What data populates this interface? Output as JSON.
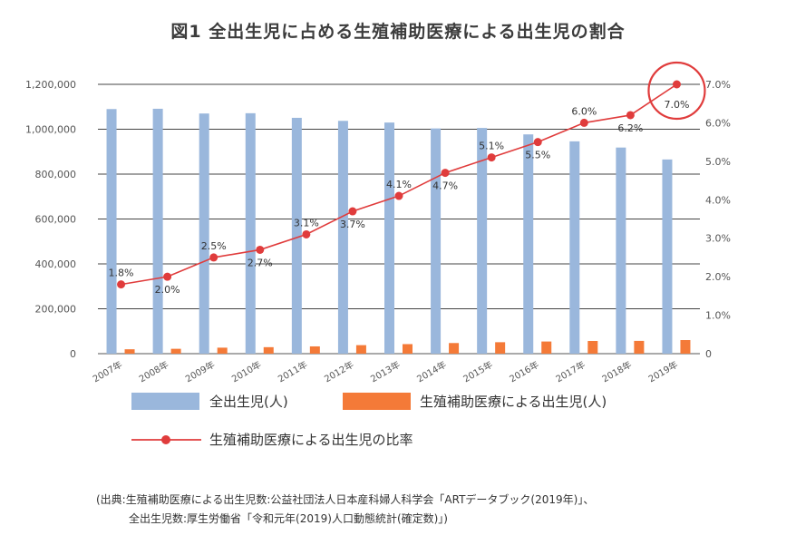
{
  "title": "図1 全出生児に占める生殖補助医療による出生児の割合",
  "chart_data": {
    "type": "bar+line",
    "categories": [
      "2007年",
      "2008年",
      "2009年",
      "2010年",
      "2011年",
      "2012年",
      "2013年",
      "2014年",
      "2015年",
      "2016年",
      "2017年",
      "2018年",
      "2019年"
    ],
    "series": [
      {
        "name": "全出生児(人)",
        "type": "bar",
        "axis": "left",
        "color": "#9ab7dc",
        "values": [
          1089818,
          1091156,
          1070035,
          1071304,
          1050806,
          1037231,
          1029816,
          1003539,
          1005677,
          976978,
          946065,
          918400,
          865239
        ]
      },
      {
        "name": "生殖補助医療による出生児(人)",
        "type": "bar",
        "axis": "left",
        "color": "#f47a38",
        "values": [
          19595,
          21704,
          26680,
          28945,
          32426,
          37953,
          42554,
          47322,
          51001,
          54110,
          56617,
          56979,
          60598
        ]
      },
      {
        "name": "生殖補助医療による出生児の比率",
        "type": "line",
        "axis": "right",
        "color": "#e03c3c",
        "values": [
          1.8,
          2.0,
          2.5,
          2.7,
          3.1,
          3.7,
          4.1,
          4.7,
          5.1,
          5.5,
          6.0,
          6.2,
          7.0
        ],
        "labels": [
          "1.8%",
          "2.0%",
          "2.5%",
          "2.7%",
          "3.1%",
          "3.7%",
          "4.1%",
          "4.7%",
          "5.1%",
          "5.5%",
          "6.0%",
          "6.2%",
          "7.0%"
        ]
      }
    ],
    "yleft": {
      "min": 0,
      "max": 1200000,
      "step": 200000,
      "ticks": [
        "0",
        "200,000",
        "400,000",
        "600,000",
        "800,000",
        "1,000,000",
        "1,200,000"
      ]
    },
    "yright": {
      "min": 0,
      "max": 7.0,
      "step": 1.0,
      "ticks": [
        "0",
        "1.0%",
        "2.0%",
        "3.0%",
        "4.0%",
        "5.0%",
        "6.0%",
        "7.0%"
      ]
    },
    "highlight": {
      "index": 12,
      "color": "#e03c3c"
    },
    "grid": true,
    "legend": [
      "全出生児(人)",
      "生殖補助医療による出生児(人)",
      "生殖補助医療による出生児の比率"
    ]
  },
  "source": {
    "line1": "(出典:生殖補助医療による出生児数:公益社団法人日本産科婦人科学会「ARTデータブック(2019年)」、",
    "line2": "全出生児数:厚生労働省「令和元年(2019)人口動態統計(確定数)」)"
  }
}
